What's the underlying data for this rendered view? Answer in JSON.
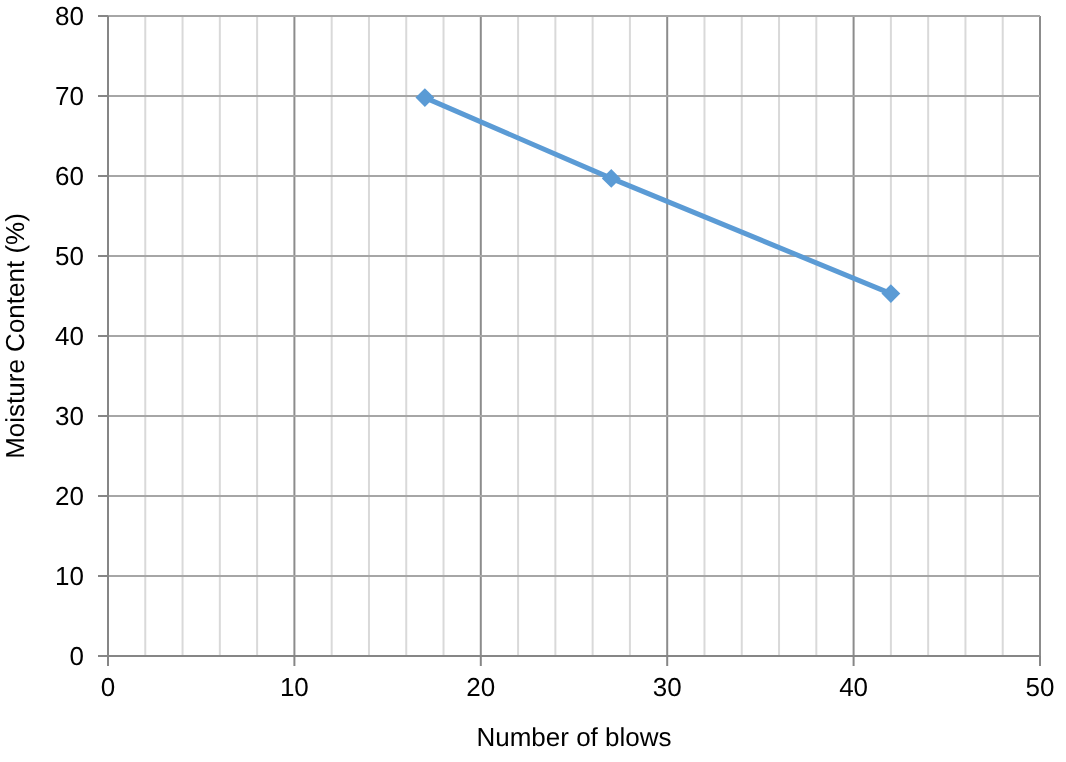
{
  "chart_data": {
    "type": "line",
    "xlabel": "Number of blows",
    "ylabel": "Moisture Content (%)",
    "x": [
      17,
      27,
      42
    ],
    "series": [
      {
        "color": "#5b9bd5",
        "values": [
          69.8,
          59.7,
          45.3
        ]
      }
    ],
    "xlim": [
      0,
      50
    ],
    "ylim": [
      0,
      80
    ],
    "xticks": [
      0,
      {
        "value": 2,
        "label": null
      },
      {
        "value": 4,
        "label": null
      },
      {
        "value": 6,
        "label": null
      },
      {
        "value": 8,
        "label": null
      },
      10,
      {
        "value": 12,
        "label": null
      },
      {
        "value": 14,
        "label": null
      },
      {
        "value": 16,
        "label": null
      },
      {
        "value": 18,
        "label": null
      },
      20,
      {
        "value": 22,
        "label": null
      },
      {
        "value": 24,
        "label": null
      },
      {
        "value": 26,
        "label": null
      },
      {
        "value": 28,
        "label": null
      },
      30,
      {
        "value": 32,
        "label": null
      },
      {
        "value": 34,
        "label": null
      },
      {
        "value": 36,
        "label": null
      },
      {
        "value": 38,
        "label": null
      },
      40,
      {
        "value": 42,
        "label": null
      },
      {
        "value": 44,
        "label": null
      },
      {
        "value": 46,
        "label": null
      },
      {
        "value": 48,
        "label": null
      },
      50
    ],
    "yticks": [
      0,
      10,
      20,
      30,
      40,
      50,
      60,
      70,
      80
    ],
    "grid": true,
    "marker": "diamond",
    "line_style": "solid"
  }
}
